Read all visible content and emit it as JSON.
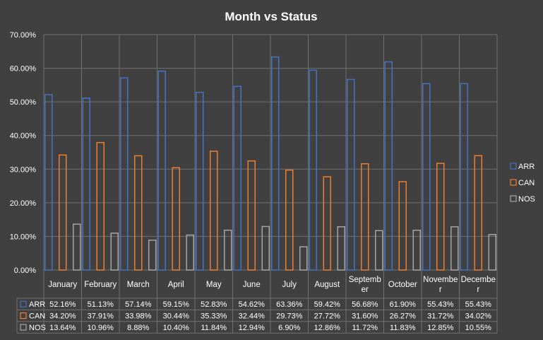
{
  "chart_data": {
    "type": "bar",
    "title": "Month vs Status",
    "categories": [
      "January",
      "February",
      "March",
      "April",
      "May",
      "June",
      "July",
      "August",
      "September",
      "October",
      "November",
      "December"
    ],
    "category_display": [
      [
        "January"
      ],
      [
        "February"
      ],
      [
        "March"
      ],
      [
        "April"
      ],
      [
        "May"
      ],
      [
        "June"
      ],
      [
        "July"
      ],
      [
        "August"
      ],
      [
        "Septemb",
        "er"
      ],
      [
        "October"
      ],
      [
        "Novembe",
        "r"
      ],
      [
        "Decembe",
        "r"
      ]
    ],
    "series": [
      {
        "name": "ARR",
        "color": "#4472C4",
        "values": [
          52.16,
          51.13,
          57.14,
          59.15,
          52.83,
          54.62,
          63.36,
          59.42,
          56.68,
          61.9,
          55.43,
          55.43
        ],
        "labels": [
          "52.16%",
          "51.13%",
          "57.14%",
          "59.15%",
          "52.83%",
          "54.62%",
          "63.36%",
          "59.42%",
          "56.68%",
          "61.90%",
          "55.43%",
          "55.43%"
        ]
      },
      {
        "name": "CAN",
        "color": "#ED7D31",
        "values": [
          34.2,
          37.91,
          33.98,
          30.44,
          35.33,
          32.44,
          29.73,
          27.72,
          31.6,
          26.27,
          31.72,
          34.02
        ],
        "labels": [
          "34.20%",
          "37.91%",
          "33.98%",
          "30.44%",
          "35.33%",
          "32.44%",
          "29.73%",
          "27.72%",
          "31.60%",
          "26.27%",
          "31.72%",
          "34.02%"
        ]
      },
      {
        "name": "NOS",
        "color": "#A5A5A5",
        "values": [
          13.64,
          10.96,
          8.88,
          10.4,
          11.84,
          12.94,
          6.9,
          12.86,
          11.72,
          11.83,
          12.85,
          10.55
        ],
        "labels": [
          "13.64%",
          "10.96%",
          "8.88%",
          "10.40%",
          "11.84%",
          "12.94%",
          "6.90%",
          "12.86%",
          "11.72%",
          "11.83%",
          "12.85%",
          "10.55%"
        ]
      }
    ],
    "ylim": [
      0,
      70
    ],
    "yticks": [
      "0.00%",
      "10.00%",
      "20.00%",
      "30.00%",
      "40.00%",
      "50.00%",
      "60.00%",
      "70.00%"
    ],
    "grid": true,
    "legend": "right",
    "data_table": true,
    "colors": {
      "background": "#404040",
      "text": "#FFFFFF",
      "grid": "#707070"
    }
  }
}
